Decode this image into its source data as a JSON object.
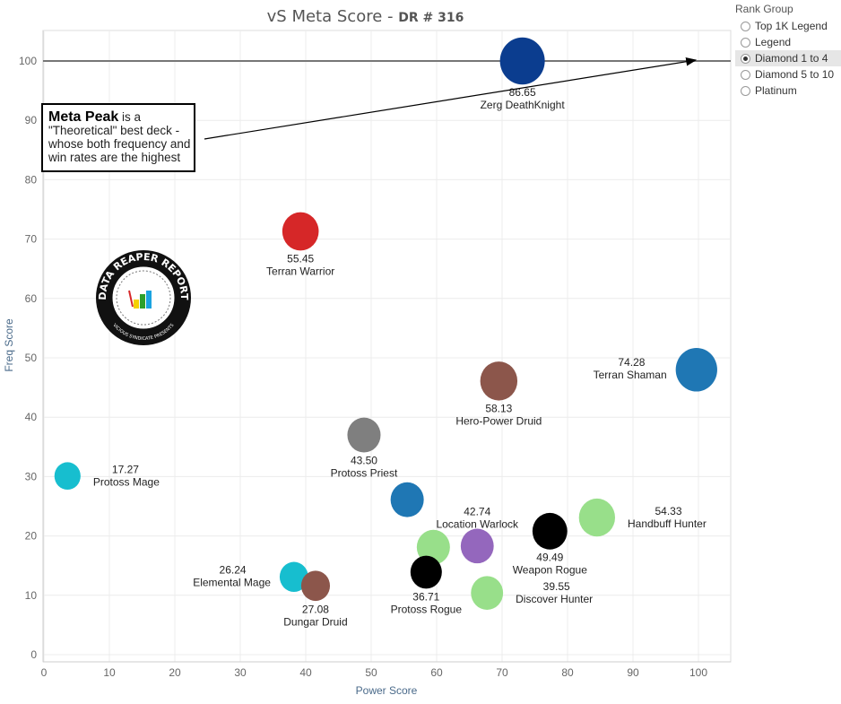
{
  "title": {
    "main": "vS Meta Score - ",
    "sub": "DR # 316"
  },
  "legend": {
    "title": "Rank Group",
    "options": [
      {
        "label": "Top 1K Legend",
        "selected": false
      },
      {
        "label": "Legend",
        "selected": false
      },
      {
        "label": "Diamond 1 to 4",
        "selected": true
      },
      {
        "label": "Diamond 5 to 10",
        "selected": false
      },
      {
        "label": "Platinum",
        "selected": false
      }
    ]
  },
  "annotation": {
    "bold": "Meta Peak",
    "text": " is a \"Theoretical\" best deck - whose both frequency and win rates are the highest"
  },
  "logo": {
    "text": "DATA REAPER REPORT",
    "subtext": "VICIOUS SYNDICATE PRESENTS"
  },
  "chart_data": {
    "type": "scatter",
    "title": "vS Meta Score - DR # 316",
    "xlabel": "Power Score",
    "ylabel": "Freq Score",
    "xlim": [
      0,
      105
    ],
    "ylim": [
      -1,
      105
    ],
    "xticks": [
      0,
      10,
      20,
      30,
      40,
      50,
      60,
      70,
      80,
      90,
      100
    ],
    "yticks": [
      0,
      10,
      20,
      30,
      40,
      50,
      60,
      70,
      80,
      90,
      100
    ],
    "grid": true,
    "reference_line": {
      "y": 100
    },
    "points": [
      {
        "name": "Zerg DeathKnight",
        "x": 73.1,
        "y": 100,
        "score": "86.65",
        "color": "#0b3d8f",
        "label": "below"
      },
      {
        "name": "Terran Warrior",
        "x": 39.2,
        "y": 71.3,
        "score": "55.45",
        "color": "#d62728",
        "label": "below"
      },
      {
        "name": "Terran Shaman",
        "x": 99.7,
        "y": 48.0,
        "score": "74.28",
        "color": "#1f77b4",
        "label": "left"
      },
      {
        "name": "Hero-Power Druid",
        "x": 69.5,
        "y": 46.1,
        "score": "58.13",
        "color": "#8c564b",
        "label": "below"
      },
      {
        "name": "Protoss Priest",
        "x": 48.9,
        "y": 37.0,
        "score": "43.50",
        "color": "#7f7f7f",
        "label": "below"
      },
      {
        "name": "Protoss Mage",
        "x": 3.6,
        "y": 30.1,
        "score": "17.27",
        "color": "#17becf",
        "label": "right"
      },
      {
        "name": "",
        "x": 55.5,
        "y": 26.1,
        "score": "",
        "color": "#1f77b4",
        "label": "none"
      },
      {
        "name": "Handbuff Hunter",
        "x": 84.5,
        "y": 23.1,
        "score": "54.33",
        "color": "#98df8a",
        "label": "right"
      },
      {
        "name": "Weapon Rogue",
        "x": 77.3,
        "y": 20.8,
        "score": "49.49",
        "color": "#000000",
        "label": "below"
      },
      {
        "name": "Location Warlock",
        "x": 66.2,
        "y": 18.3,
        "score": "42.74",
        "color": "#9467bd",
        "label": "above"
      },
      {
        "name": "",
        "x": 59.5,
        "y": 18.1,
        "score": "",
        "color": "#98df8a",
        "label": "none"
      },
      {
        "name": "Protoss Rogue",
        "x": 58.4,
        "y": 13.9,
        "score": "36.71",
        "color": "#000000",
        "label": "below"
      },
      {
        "name": "Discover Hunter",
        "x": 67.7,
        "y": 10.4,
        "score": "39.55",
        "color": "#98df8a",
        "label": "right"
      },
      {
        "name": "Elemental Mage",
        "x": 38.2,
        "y": 13.1,
        "score": "26.24",
        "color": "#17becf",
        "label": "left"
      },
      {
        "name": "Dungar Druid",
        "x": 41.5,
        "y": 11.6,
        "score": "27.08",
        "color": "#8c564b",
        "label": "below"
      }
    ]
  }
}
